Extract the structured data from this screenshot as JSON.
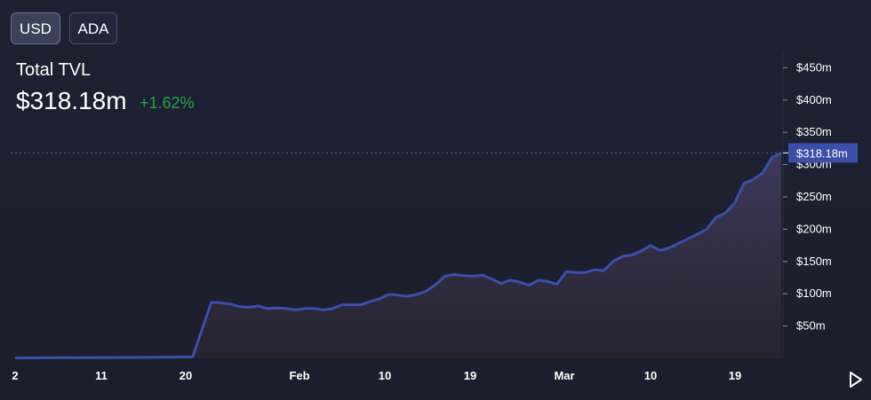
{
  "toggles": {
    "usd_label": "USD",
    "ada_label": "ADA",
    "active": "USD"
  },
  "stat": {
    "label": "Total TVL",
    "value": "$318.18m",
    "change": "+1.62%"
  },
  "colors": {
    "line": "#3c4ea8",
    "change_positive": "#27a149",
    "badge": "#3c4ea8"
  },
  "chart_data": {
    "type": "area",
    "title": "",
    "xlabel": "",
    "ylabel": "",
    "x_tick_labels": [
      "2",
      "11",
      "20",
      "Feb",
      "10",
      "19",
      "Mar",
      "10",
      "19"
    ],
    "y_tick_labels": [
      "$50m",
      "$100m",
      "$150m",
      "$200m",
      "$250m",
      "$300m",
      "$350m",
      "$400m",
      "$450m"
    ],
    "y_ticks": [
      50,
      100,
      150,
      200,
      250,
      300,
      350,
      400,
      450
    ],
    "ylim": [
      0,
      470
    ],
    "current_value": 318.18,
    "current_label": "$318.18m",
    "grid": false,
    "series": [
      {
        "values": [
          [
            0,
            0.5
          ],
          [
            5,
            1
          ],
          [
            10,
            1.2
          ],
          [
            15,
            1.5
          ],
          [
            18,
            2.0
          ],
          [
            19,
            2.0
          ],
          [
            21,
            87
          ],
          [
            22,
            86
          ],
          [
            23,
            84
          ],
          [
            24,
            80
          ],
          [
            25,
            79
          ],
          [
            26,
            81
          ],
          [
            27,
            77
          ],
          [
            28,
            78
          ],
          [
            29,
            77
          ],
          [
            30,
            75
          ],
          [
            31,
            77
          ],
          [
            32,
            77
          ],
          [
            33,
            75
          ],
          [
            34,
            77
          ],
          [
            35,
            83
          ],
          [
            36,
            83
          ],
          [
            37,
            83
          ],
          [
            38,
            88
          ],
          [
            39,
            92
          ],
          [
            40,
            99
          ],
          [
            41,
            98
          ],
          [
            42,
            96
          ],
          [
            43,
            99
          ],
          [
            44,
            104
          ],
          [
            45,
            114
          ],
          [
            46,
            127
          ],
          [
            47,
            130
          ],
          [
            48,
            128
          ],
          [
            49,
            127
          ],
          [
            50,
            129
          ],
          [
            51,
            123
          ],
          [
            52,
            116
          ],
          [
            53,
            121
          ],
          [
            54,
            118
          ],
          [
            55,
            113
          ],
          [
            56,
            121
          ],
          [
            57,
            119
          ],
          [
            58,
            115
          ],
          [
            59,
            134
          ],
          [
            60,
            133
          ],
          [
            61,
            133
          ],
          [
            62,
            137
          ],
          [
            63,
            136
          ],
          [
            64,
            150
          ],
          [
            65,
            158
          ],
          [
            66,
            160
          ],
          [
            67,
            166
          ],
          [
            68,
            175
          ],
          [
            69,
            167
          ],
          [
            70,
            171
          ],
          [
            71,
            178
          ],
          [
            72,
            185
          ],
          [
            73,
            192
          ],
          [
            74,
            200
          ],
          [
            75,
            218
          ],
          [
            76,
            225
          ],
          [
            77,
            240
          ],
          [
            78,
            271
          ],
          [
            79,
            277
          ],
          [
            80,
            287
          ],
          [
            81,
            311
          ],
          [
            82,
            318.18
          ]
        ]
      }
    ]
  }
}
